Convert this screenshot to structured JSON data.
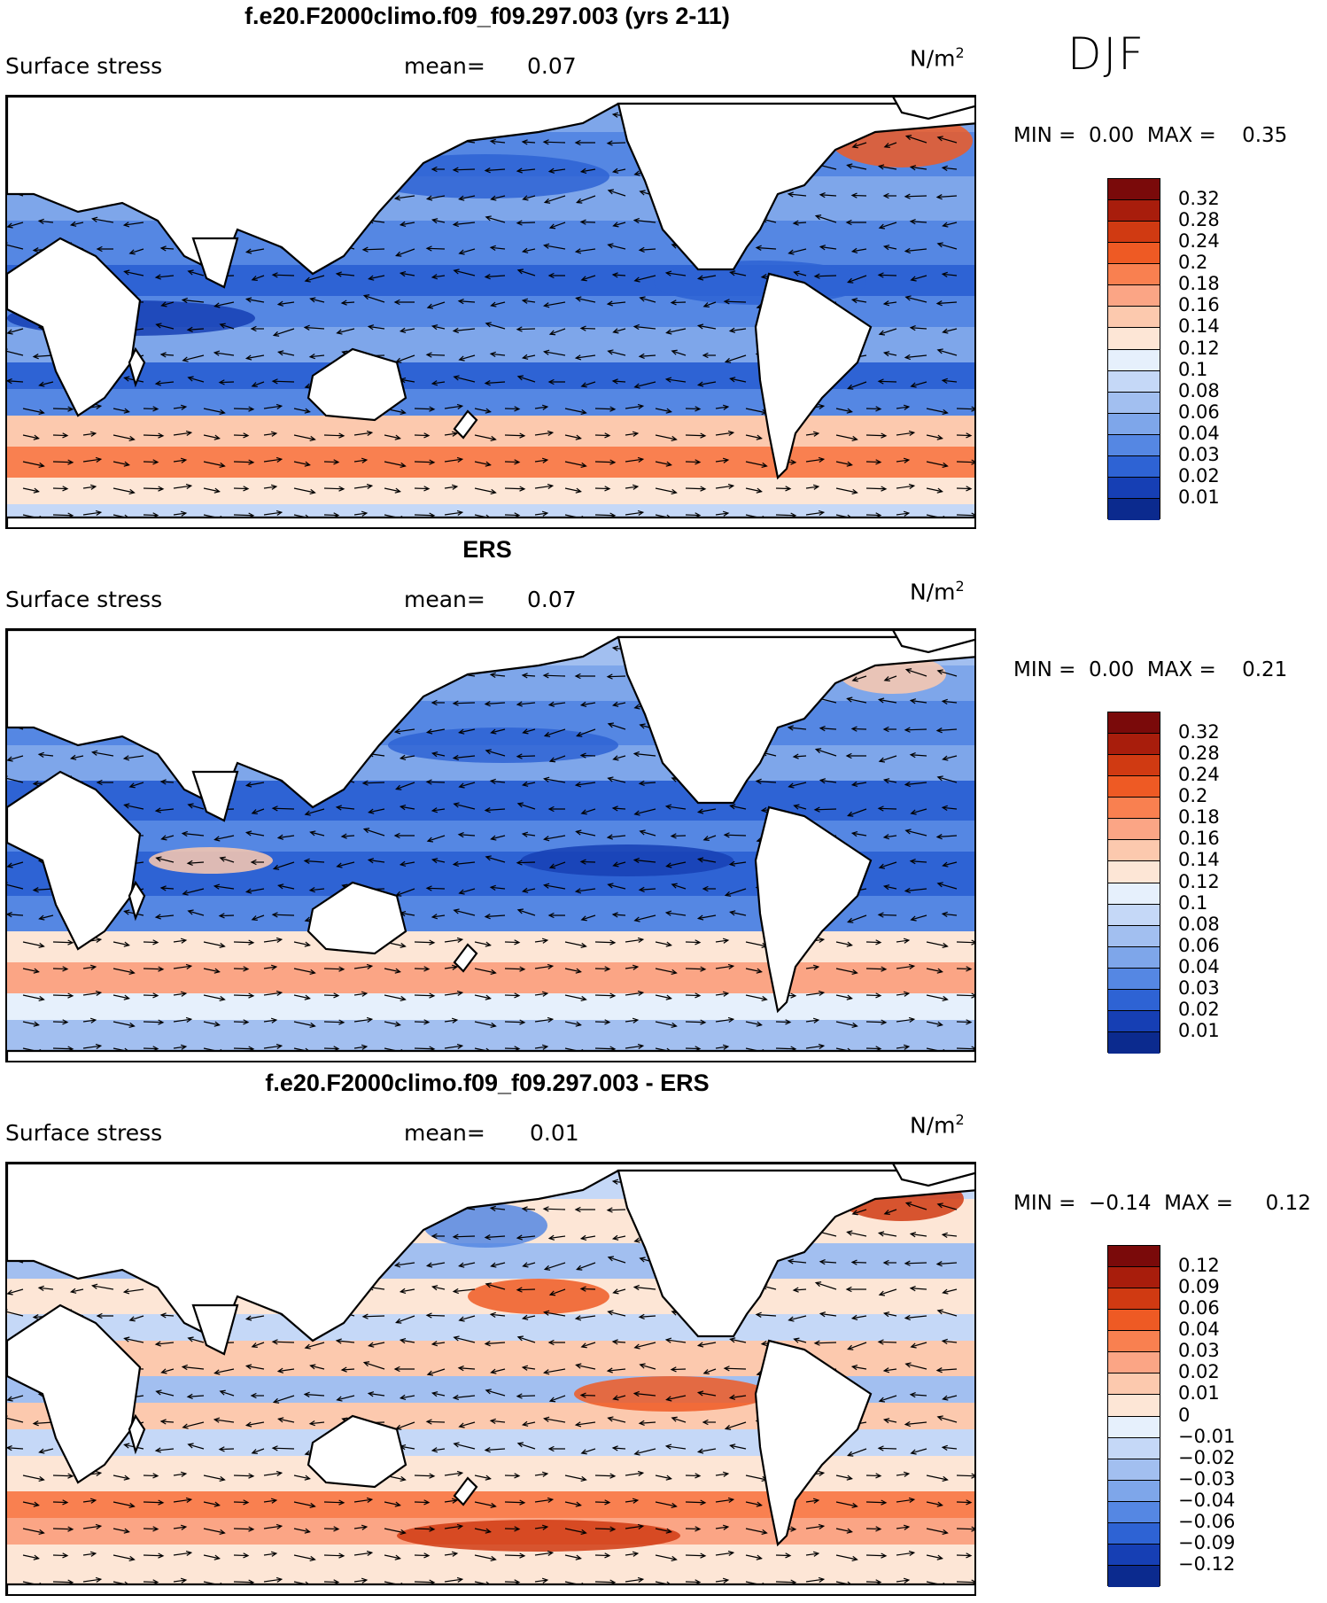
{
  "season": "DJF",
  "panels": [
    {
      "title": "f.e20.F2000climo.f09_f09.297.003 (yrs 2-11)",
      "variable": "Surface stress",
      "mean_label": "mean=",
      "mean_value": "0.07",
      "units": "N/m",
      "units_power": "2",
      "min_label": "MIN =",
      "min_value": "0.00",
      "max_label": "MAX =",
      "max_value": "0.35",
      "colorbar_labels": [
        "0.32",
        "0.28",
        "0.24",
        "0.2",
        "0.18",
        "0.16",
        "0.14",
        "0.12",
        "0.1",
        "0.08",
        "0.06",
        "0.04",
        "0.03",
        "0.02",
        "0.01"
      ]
    },
    {
      "title": "ERS",
      "variable": "Surface stress",
      "mean_label": "mean=",
      "mean_value": "0.07",
      "units": "N/m",
      "units_power": "2",
      "min_label": "MIN =",
      "min_value": "0.00",
      "max_label": "MAX =",
      "max_value": "0.21",
      "colorbar_labels": [
        "0.32",
        "0.28",
        "0.24",
        "0.2",
        "0.18",
        "0.16",
        "0.14",
        "0.12",
        "0.1",
        "0.08",
        "0.06",
        "0.04",
        "0.03",
        "0.02",
        "0.01"
      ]
    },
    {
      "title": "f.e20.F2000climo.f09_f09.297.003 - ERS",
      "variable": "Surface stress",
      "mean_label": "mean=",
      "mean_value": "0.01",
      "units": "N/m",
      "units_power": "2",
      "min_label": "MIN =",
      "min_value": "−0.14",
      "max_label": "MAX =",
      "max_value": "0.12",
      "colorbar_labels": [
        "0.12",
        "0.09",
        "0.06",
        "0.04",
        "0.03",
        "0.02",
        "0.01",
        "0",
        "−0.01",
        "−0.02",
        "−0.03",
        "−0.04",
        "−0.06",
        "−0.09",
        "−0.12"
      ]
    }
  ],
  "colors": {
    "colorbar": [
      "#7a0a0a",
      "#a81d0c",
      "#d03a12",
      "#ee5a24",
      "#f98050",
      "#fba585",
      "#fcc9ae",
      "#fde6d6",
      "#e6f0fc",
      "#c5d8f7",
      "#a2bff0",
      "#7ea6ea",
      "#5587e3",
      "#2e63d4",
      "#163fb4",
      "#0b2a8e"
    ],
    "land": "#ffffff",
    "coast": "#000000",
    "arrows": "#000000"
  }
}
